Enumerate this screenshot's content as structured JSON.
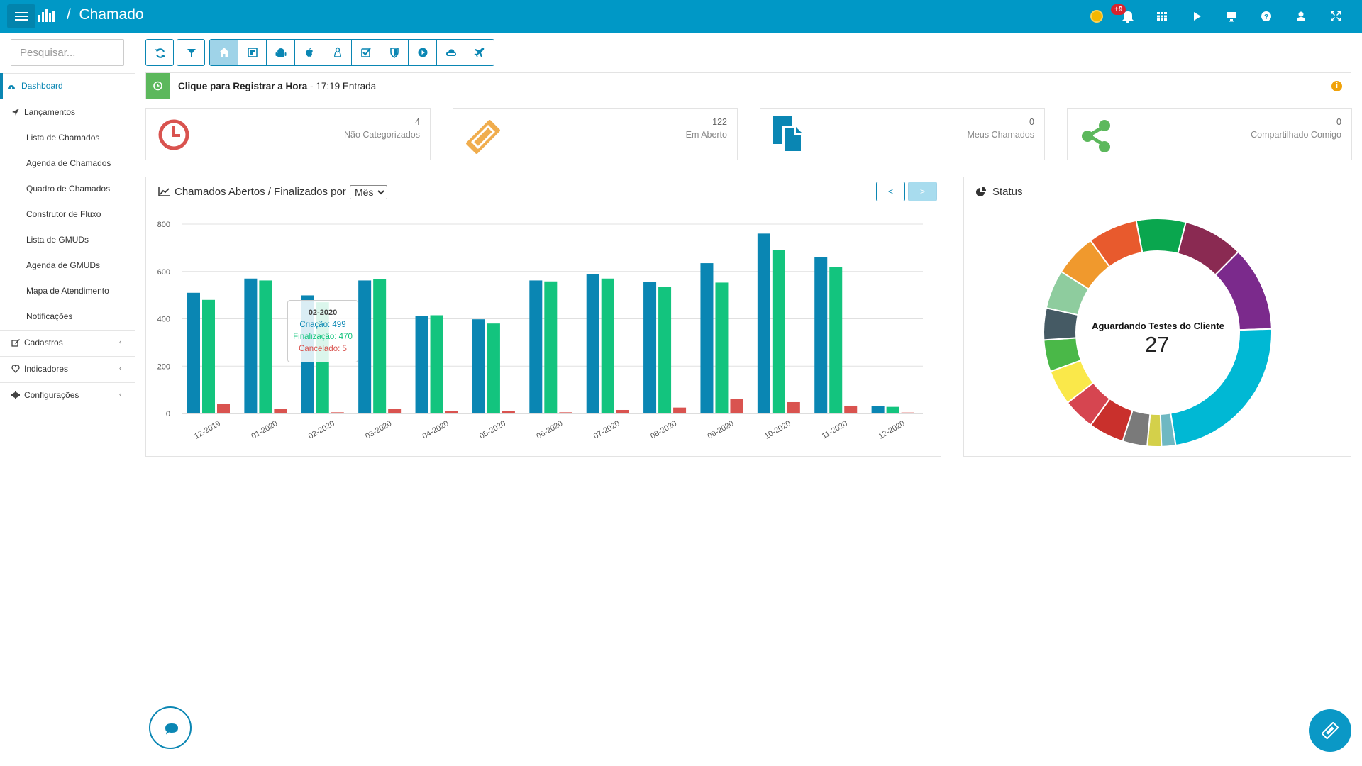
{
  "header": {
    "breadcrumb_separator": "/",
    "title": "Chamado",
    "notification_badge": "+9",
    "icons": [
      "coin-icon",
      "bell-icon",
      "grid-icon",
      "play-icon",
      "monitor-icon",
      "help-icon",
      "user-icon",
      "expand-icon"
    ]
  },
  "sidebar": {
    "search_placeholder": "Pesquisar...",
    "items": [
      {
        "label": "Dashboard",
        "icon": "dashboard-icon",
        "active": true
      },
      {
        "label": "Lançamentos",
        "icon": "send-icon"
      },
      {
        "label": "Lista de Chamados"
      },
      {
        "label": "Agenda de Chamados"
      },
      {
        "label": "Quadro de Chamados"
      },
      {
        "label": "Construtor de Fluxo"
      },
      {
        "label": "Lista de GMUDs"
      },
      {
        "label": "Agenda de GMUDs"
      },
      {
        "label": "Mapa de Atendimento"
      },
      {
        "label": "Notificações"
      },
      {
        "label": "Cadastros",
        "icon": "edit-icon",
        "chevron": "‹"
      },
      {
        "label": "Indicadores",
        "icon": "heart-icon",
        "chevron": "‹"
      },
      {
        "label": "Configurações",
        "icon": "cog-icon",
        "chevron": "‹"
      }
    ]
  },
  "toolbar": {
    "buttons": [
      "refresh-icon",
      "filter-icon",
      "home-icon",
      "board-icon",
      "android-icon",
      "apple-icon",
      "linux-icon",
      "checkbox-icon",
      "shield-icon",
      "play-circle-icon",
      "cloud-icon",
      "plane-icon"
    ],
    "active": "home-icon"
  },
  "clock": {
    "action": "Clique para Registrar a Hora",
    "dash": " - ",
    "detail": "17:19 Entrada",
    "info_icon": "i"
  },
  "stats": [
    {
      "count": "4",
      "label": "Não Categorizados",
      "icon": "clock-icon",
      "color": "#d9534f"
    },
    {
      "count": "122",
      "label": "Em Aberto",
      "icon": "ticket-icon",
      "color": "#f0ad4e"
    },
    {
      "count": "0",
      "label": "Meus Chamados",
      "icon": "files-icon",
      "color": "#0a86b3"
    },
    {
      "count": "0",
      "label": "Compartilhado Comigo",
      "icon": "share-icon",
      "color": "#5cb85c"
    }
  ],
  "chart_panel": {
    "title": "Chamados Abertos / Finalizados por",
    "period": "Mês",
    "prev": "<",
    "next": ">"
  },
  "status_panel": {
    "title": "Status",
    "center_label": "Aguardando Testes do Cliente",
    "center_value": "27"
  },
  "tooltip": {
    "title": "02-2020",
    "lines": [
      "Criação: 499",
      "Finalização: 470",
      "Cancelado: 5"
    ]
  },
  "chart_data": [
    {
      "type": "bar",
      "categories": [
        "12-2019",
        "01-2020",
        "02-2020",
        "03-2020",
        "04-2020",
        "05-2020",
        "06-2020",
        "07-2020",
        "08-2020",
        "09-2020",
        "10-2020",
        "11-2020",
        "12-2020"
      ],
      "series": [
        {
          "name": "Criação",
          "color": "#0a86b3",
          "values": [
            510,
            570,
            499,
            562,
            412,
            398,
            562,
            590,
            555,
            635,
            760,
            660,
            32
          ]
        },
        {
          "name": "Finalização",
          "color": "#13c47e",
          "values": [
            480,
            562,
            470,
            567,
            415,
            380,
            558,
            570,
            536,
            553,
            690,
            620,
            28
          ]
        },
        {
          "name": "Cancelado",
          "color": "#d9534f",
          "values": [
            40,
            20,
            5,
            18,
            10,
            10,
            5,
            15,
            25,
            60,
            48,
            33,
            4
          ]
        }
      ],
      "ylim": [
        0,
        800
      ],
      "yticks": [
        0,
        200,
        400,
        600,
        800
      ],
      "grid": true
    },
    {
      "type": "pie",
      "donut": true,
      "slices": [
        {
          "color": "#0aa64e",
          "value": 7.0
        },
        {
          "color": "#8a2a52",
          "value": 8.5
        },
        {
          "color": "#7b2a8c",
          "value": 12.0
        },
        {
          "color": "#00b8d4",
          "value": 23.0
        },
        {
          "color": "#6fb8c2",
          "value": 2.0
        },
        {
          "color": "#d4d04a",
          "value": 2.0
        },
        {
          "color": "#7a7a7a",
          "value": 3.5
        },
        {
          "color": "#c9302c",
          "value": 5.0
        },
        {
          "color": "#d64550",
          "value": 4.5
        },
        {
          "color": "#fae84a",
          "value": 5.0
        },
        {
          "color": "#4ab848",
          "value": 4.5
        },
        {
          "color": "#455a64",
          "value": 4.5
        },
        {
          "color": "#8ecc9e",
          "value": 5.5
        },
        {
          "color": "#f0992d",
          "value": 6.0
        },
        {
          "color": "#e85a2d",
          "value": 7.0
        }
      ]
    }
  ]
}
